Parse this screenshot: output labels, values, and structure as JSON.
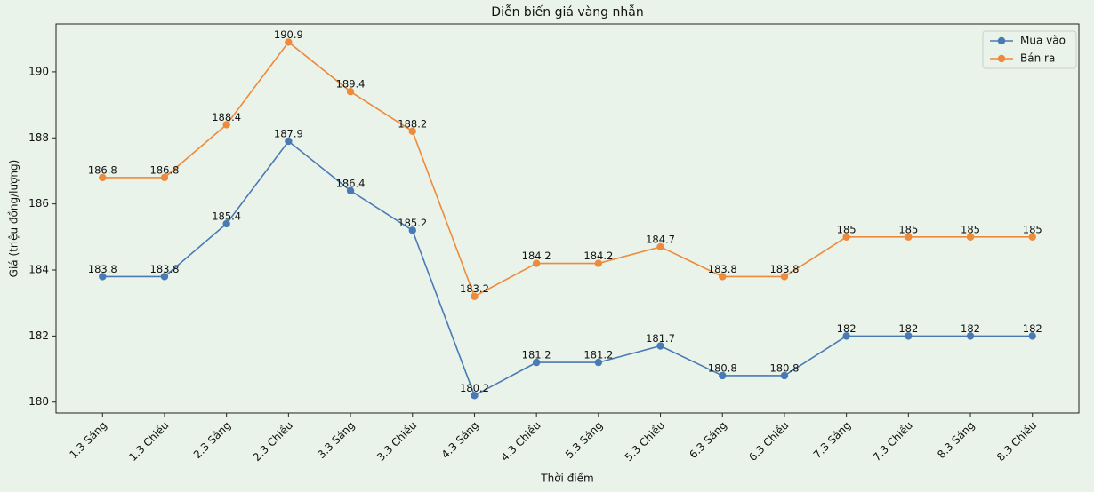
{
  "chart_data": {
    "type": "line",
    "title": "Diễn biến giá vàng nhẫn",
    "x_label": "Thời điểm",
    "y_label": "Giá (triệu đồng/lượng)",
    "categories": [
      "1.3 Sáng",
      "1.3 Chiều",
      "2.3 Sáng",
      "2.3 Chiều",
      "3.3 Sáng",
      "3.3 Chiều",
      "4.3 Sáng",
      "4.3 Chiều",
      "5.3 Sáng",
      "5.3 Chiều",
      "6.3 Sáng",
      "6.3 Chiều",
      "7.3 Sáng",
      "7.3 Chiều",
      "8.3 Sáng",
      "8.3 Chiều"
    ],
    "series": [
      {
        "name": "Mua vào",
        "color": "#4a7ab4",
        "values": [
          183.8,
          183.8,
          185.4,
          187.9,
          186.4,
          185.2,
          180.2,
          181.2,
          181.2,
          181.7,
          180.8,
          180.8,
          182,
          182,
          182,
          182
        ]
      },
      {
        "name": "Bán ra",
        "color": "#ef8a3b",
        "values": [
          186.8,
          186.8,
          188.4,
          190.9,
          189.4,
          188.2,
          183.2,
          184.2,
          184.2,
          184.7,
          183.8,
          183.8,
          185,
          185,
          185,
          185
        ]
      }
    ],
    "ylim": [
      179.67,
      191.45
    ],
    "yticks": [
      180,
      182,
      184,
      186,
      188,
      190
    ],
    "legend": "upper right",
    "grid": false
  }
}
